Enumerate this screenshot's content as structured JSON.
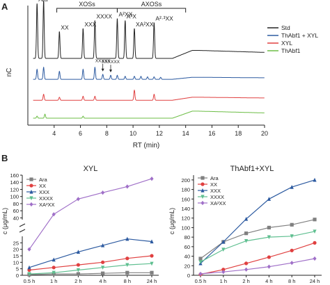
{
  "panels": {
    "a": "A",
    "b": "B"
  },
  "chart_data": [
    {
      "type": "line",
      "panel": "A",
      "subtype": "chromatogram",
      "xlabel": "RT (min)",
      "ylabel": "nC",
      "xlim": [
        2,
        20
      ],
      "ylim": [
        0,
        120
      ],
      "x_ticks": [
        "4",
        "6",
        "8",
        "10",
        "12",
        "14",
        "16",
        "18",
        "20"
      ],
      "y_ticks": [
        "20",
        "40",
        "60",
        "80",
        "100",
        "120"
      ],
      "brackets": [
        {
          "label": "XOSs",
          "from": 4.2,
          "to": 8.8
        },
        {
          "label": "AXOSs",
          "from": 8.8,
          "to": 14.0
        }
      ],
      "peak_labels": [
        {
          "text": "Ara",
          "x": 2.7
        },
        {
          "text": "Xyl",
          "x": 3.2
        },
        {
          "text": "XX",
          "x": 4.4
        },
        {
          "text": "XXX",
          "x": 6.2
        },
        {
          "text": "XXXX",
          "x": 7.1
        },
        {
          "text": "A²XX",
          "x": 8.8
        },
        {
          "text": "A³X",
          "x": 9.4
        },
        {
          "text": "XA²XX",
          "x": 10.1
        },
        {
          "text": "A²·³XX",
          "x": 11.6
        },
        {
          "text": "XXXXX",
          "x": 7.7
        },
        {
          "text": "XXXXXX",
          "x": 8.3
        }
      ],
      "series": [
        {
          "name": "Std",
          "color": "#222222",
          "baseline": 67,
          "rise": 8,
          "peaks": [
            [
              2.7,
              55
            ],
            [
              3.2,
              58
            ],
            [
              4.4,
              27
            ],
            [
              6.2,
              30
            ],
            [
              7.1,
              38
            ],
            [
              8.8,
              40
            ],
            [
              9.4,
              38
            ],
            [
              10.1,
              30
            ],
            [
              11.6,
              36
            ]
          ]
        },
        {
          "name": "ThAbf1 + XYL",
          "color": "#2c5aa0",
          "baseline": 46,
          "rise": 2,
          "peaks": [
            [
              2.7,
              10
            ],
            [
              3.2,
              12
            ],
            [
              4.4,
              8
            ],
            [
              6.2,
              10
            ],
            [
              7.1,
              12
            ],
            [
              7.7,
              5
            ],
            [
              8.3,
              4
            ],
            [
              8.8,
              4
            ],
            [
              9.4,
              3
            ],
            [
              10.1,
              3
            ],
            [
              10.6,
              3
            ],
            [
              11.1,
              2.5
            ],
            [
              11.6,
              2.5
            ],
            [
              12.1,
              2
            ]
          ]
        },
        {
          "name": "XYL",
          "color": "#e04040",
          "baseline": 25,
          "rise": 3,
          "peaks": [
            [
              3.2,
              6
            ],
            [
              4.4,
              3
            ],
            [
              6.2,
              4
            ],
            [
              7.1,
              4
            ],
            [
              10.1,
              10
            ],
            [
              11.6,
              6
            ]
          ]
        },
        {
          "name": "ThAbf1",
          "color": "#6cbd45",
          "baseline": 7,
          "rise": 7,
          "peaks": [
            [
              2.7,
              2
            ],
            [
              3.3,
              4
            ],
            [
              6.2,
              2
            ]
          ]
        }
      ],
      "legend": [
        "Std",
        "ThAbf1 + XYL",
        "XYL",
        "ThAbf1"
      ],
      "legend_position": "right"
    },
    {
      "type": "line",
      "panel": "B-left",
      "title": "XYL",
      "ylabel": "c (μg/mL)",
      "categories": [
        "0.5 h",
        "1 h",
        "2 h",
        "4 h",
        "8 h",
        "24 h"
      ],
      "y_ticks_lower": [
        "0",
        "5",
        "10",
        "15",
        "20",
        "25"
      ],
      "y_ticks_upper": [
        "40",
        "60",
        "80",
        "100",
        "120",
        "140",
        "160"
      ],
      "axis_break": true,
      "series": [
        {
          "name": "Ara",
          "color": "#808080",
          "marker": "square",
          "values": [
            0.5,
            1,
            1,
            1.5,
            2,
            2
          ]
        },
        {
          "name": "XX",
          "color": "#e04040",
          "marker": "circle",
          "values": [
            4,
            6,
            8,
            10,
            13,
            15
          ]
        },
        {
          "name": "XXX",
          "color": "#2c5aa0",
          "marker": "triangle",
          "values": [
            6,
            12,
            18,
            23,
            28,
            26
          ]
        },
        {
          "name": "XXXX",
          "color": "#5fbf90",
          "marker": "triangle-down",
          "values": [
            1,
            2,
            4,
            6,
            8,
            9
          ]
        },
        {
          "name": "XA²XX",
          "color": "#a070c8",
          "marker": "diamond",
          "values": [
            20,
            50,
            93,
            111,
            128,
            150
          ]
        }
      ]
    },
    {
      "type": "line",
      "panel": "B-right",
      "title": "ThAbf1+XYL",
      "ylabel": "c (μg/mL)",
      "categories": [
        "0.5 h",
        "1 h",
        "2 h",
        "4 h",
        "8 h",
        "24 h"
      ],
      "ylim": [
        0,
        210
      ],
      "y_ticks": [
        "0",
        "20",
        "40",
        "60",
        "80",
        "100",
        "120",
        "140",
        "160",
        "180",
        "200"
      ],
      "series": [
        {
          "name": "Ara",
          "color": "#808080",
          "marker": "square",
          "values": [
            35,
            70,
            88,
            100,
            106,
            117
          ]
        },
        {
          "name": "XX",
          "color": "#e04040",
          "marker": "circle",
          "values": [
            2,
            12,
            25,
            38,
            52,
            68
          ]
        },
        {
          "name": "XXX",
          "color": "#2c5aa0",
          "marker": "triangle",
          "values": [
            25,
            70,
            118,
            160,
            185,
            200
          ]
        },
        {
          "name": "XXXX",
          "color": "#5fbf90",
          "marker": "triangle-down",
          "values": [
            28,
            54,
            72,
            80,
            82,
            92
          ]
        },
        {
          "name": "XA²XX",
          "color": "#a070c8",
          "marker": "diamond",
          "values": [
            3,
            7,
            12,
            18,
            26,
            35
          ]
        }
      ]
    }
  ]
}
